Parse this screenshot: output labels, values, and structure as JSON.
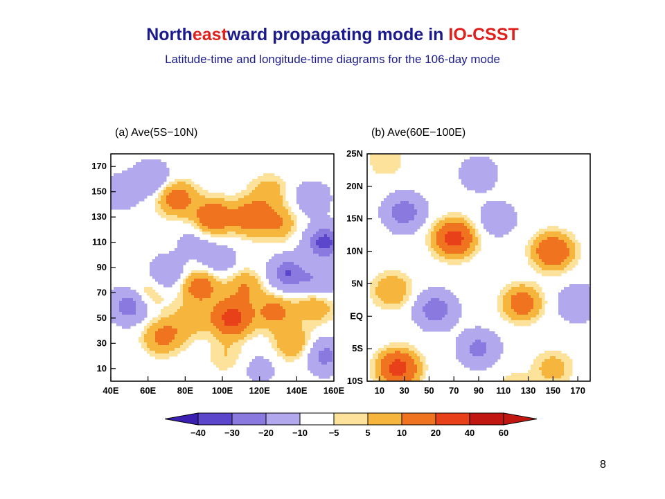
{
  "slide": {
    "title_parts": [
      {
        "text": "North",
        "highlight": false
      },
      {
        "text": "east",
        "highlight": true
      },
      {
        "text": "ward propagating mode in ",
        "highlight": false
      },
      {
        "text": "IO-CSST",
        "highlight": true
      }
    ],
    "subtitle": "Latitude-time and longitude-time diagrams for the 106-day mode",
    "page_number": "8"
  },
  "colors": {
    "title": "#1a1a8c",
    "highlight": "#e0201c"
  },
  "chart_data": [
    {
      "type": "heatmap",
      "title": "(a) Ave(5S−10N)",
      "x_ticks": [
        "40E",
        "60E",
        "80E",
        "100E",
        "120E",
        "140E",
        "160E"
      ],
      "x_range": [
        40,
        160
      ],
      "y_ticks": [
        10,
        30,
        50,
        70,
        90,
        110,
        130,
        150,
        170
      ],
      "y_range": [
        0,
        180
      ],
      "blobs": [
        {
          "x": 62,
          "y": 160,
          "v": -20
        },
        {
          "x": 45,
          "y": 150,
          "v": -15
        },
        {
          "x": 75,
          "y": 145,
          "v": 30
        },
        {
          "x": 95,
          "y": 130,
          "v": 35
        },
        {
          "x": 115,
          "y": 130,
          "v": 30
        },
        {
          "x": 125,
          "y": 150,
          "v": 15
        },
        {
          "x": 130,
          "y": 125,
          "v": 20
        },
        {
          "x": 148,
          "y": 145,
          "v": -15
        },
        {
          "x": 155,
          "y": 110,
          "v": -35
        },
        {
          "x": 135,
          "y": 85,
          "v": -30
        },
        {
          "x": 152,
          "y": 78,
          "v": -20
        },
        {
          "x": 150,
          "y": 60,
          "v": 20
        },
        {
          "x": 155,
          "y": 20,
          "v": -25
        },
        {
          "x": 138,
          "y": 30,
          "v": 20
        },
        {
          "x": 128,
          "y": 55,
          "v": 25
        },
        {
          "x": 112,
          "y": 75,
          "v": 20
        },
        {
          "x": 105,
          "y": 50,
          "v": 50
        },
        {
          "x": 102,
          "y": 20,
          "v": 10
        },
        {
          "x": 88,
          "y": 75,
          "v": 30
        },
        {
          "x": 82,
          "y": 48,
          "v": 15
        },
        {
          "x": 68,
          "y": 35,
          "v": 25
        },
        {
          "x": 70,
          "y": 85,
          "v": -20
        },
        {
          "x": 60,
          "y": 70,
          "v": 15
        },
        {
          "x": 50,
          "y": 60,
          "v": -30
        },
        {
          "x": 85,
          "y": 110,
          "v": -10
        },
        {
          "x": 98,
          "y": 95,
          "v": -15
        },
        {
          "x": 45,
          "y": 100,
          "v": 5
        },
        {
          "x": 120,
          "y": 10,
          "v": -10
        }
      ]
    },
    {
      "type": "heatmap",
      "title": "(b) Ave(60E−100E)",
      "x_ticks": [
        10,
        30,
        50,
        70,
        90,
        110,
        130,
        150,
        170
      ],
      "x_range": [
        0,
        180
      ],
      "y_ticks": [
        "10S",
        "5S",
        "EQ",
        "5N",
        "10N",
        "15N",
        "20N",
        "25N"
      ],
      "y_range": [
        -10,
        25
      ],
      "blobs": [
        {
          "x": 30,
          "y": 16,
          "v": -30
        },
        {
          "x": 15,
          "y": 24,
          "v": 10
        },
        {
          "x": 90,
          "y": 22,
          "v": -15
        },
        {
          "x": 70,
          "y": 12,
          "v": 50
        },
        {
          "x": 105,
          "y": 15,
          "v": -15
        },
        {
          "x": 150,
          "y": 10,
          "v": 40
        },
        {
          "x": 125,
          "y": 2,
          "v": 30
        },
        {
          "x": 170,
          "y": 2,
          "v": -20
        },
        {
          "x": 55,
          "y": 1,
          "v": -30
        },
        {
          "x": 20,
          "y": 4,
          "v": 20
        },
        {
          "x": 25,
          "y": -8,
          "v": 50
        },
        {
          "x": 90,
          "y": -5,
          "v": -25
        },
        {
          "x": 150,
          "y": -8,
          "v": 15
        },
        {
          "x": 120,
          "y": -11,
          "v": 10
        }
      ]
    }
  ],
  "colorbar": {
    "levels": [
      "−40",
      "−30",
      "−20",
      "−10",
      "−5",
      "5",
      "10",
      "20",
      "40",
      "60"
    ],
    "colors": [
      "#3a1fb0",
      "#5b46cc",
      "#8a7ae0",
      "#b2a8ee",
      "#ffffff",
      "#fce29a",
      "#f6b63e",
      "#f07420",
      "#e84018",
      "#c01810"
    ]
  }
}
